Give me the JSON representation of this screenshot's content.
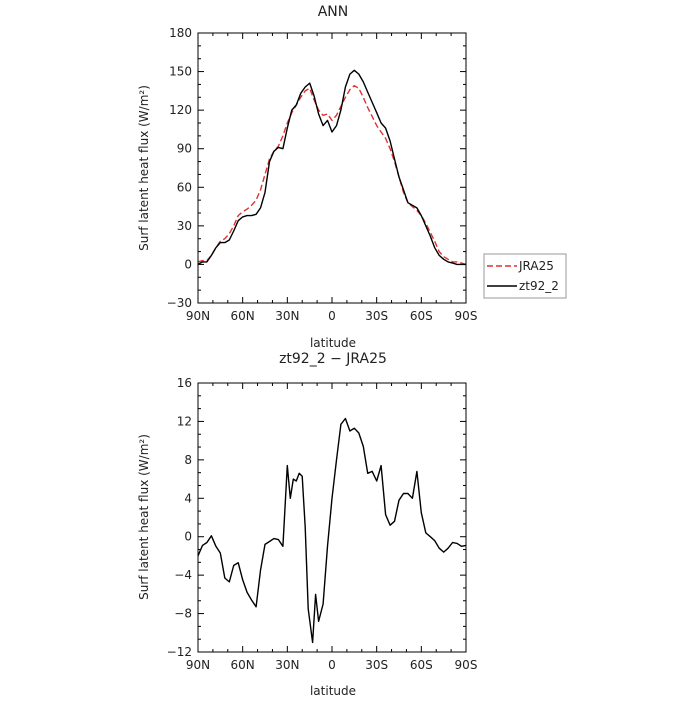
{
  "chart_data": [
    {
      "type": "line",
      "title": "ANN",
      "xlabel": "latitude",
      "ylabel": "Surf latent heat flux (W/m²)",
      "xlim": [
        90,
        -90
      ],
      "ylim": [
        -30,
        180
      ],
      "x_tick_values": [
        90,
        60,
        30,
        0,
        -30,
        -60,
        -90
      ],
      "x_tick_labels": [
        "90N",
        "60N",
        "30N",
        "0",
        "30S",
        "60S",
        "90S"
      ],
      "y_tick_values": [
        -30,
        0,
        30,
        60,
        90,
        120,
        150,
        180
      ],
      "y_tick_labels": [
        "−30",
        "0",
        "30",
        "60",
        "90",
        "120",
        "150",
        "180"
      ],
      "legend": {
        "placement": "right"
      },
      "series": [
        {
          "name": "JRA25",
          "color": "#e03030",
          "dash": "dashed",
          "points": [
            [
              90,
              2
            ],
            [
              87,
              3
            ],
            [
              84,
              3
            ],
            [
              81,
              7
            ],
            [
              78,
              13
            ],
            [
              75,
              18
            ],
            [
              72,
              20
            ],
            [
              69,
              24
            ],
            [
              66,
              30
            ],
            [
              63,
              38
            ],
            [
              60,
              41
            ],
            [
              57,
              43
            ],
            [
              54,
              46
            ],
            [
              51,
              50
            ],
            [
              48,
              58
            ],
            [
              45,
              70
            ],
            [
              42,
              82
            ],
            [
              39,
              88
            ],
            [
              36,
              92
            ],
            [
              33,
              100
            ],
            [
              30,
              110
            ],
            [
              27,
              118
            ],
            [
              24,
              124
            ],
            [
              21,
              130
            ],
            [
              18,
              135
            ],
            [
              15,
              137
            ],
            [
              12,
              128
            ],
            [
              9,
              120
            ],
            [
              6,
              116
            ],
            [
              3,
              117
            ],
            [
              0,
              112
            ],
            [
              -3,
              116
            ],
            [
              -6,
              123
            ],
            [
              -9,
              130
            ],
            [
              -12,
              136
            ],
            [
              -15,
              139
            ],
            [
              -18,
              137
            ],
            [
              -21,
              130
            ],
            [
              -24,
              122
            ],
            [
              -27,
              115
            ],
            [
              -30,
              108
            ],
            [
              -33,
              103
            ],
            [
              -36,
              98
            ],
            [
              -39,
              90
            ],
            [
              -42,
              80
            ],
            [
              -45,
              68
            ],
            [
              -48,
              56
            ],
            [
              -51,
              48
            ],
            [
              -54,
              45
            ],
            [
              -57,
              42
            ],
            [
              -60,
              38
            ],
            [
              -63,
              32
            ],
            [
              -66,
              25
            ],
            [
              -69,
              18
            ],
            [
              -72,
              10
            ],
            [
              -75,
              6
            ],
            [
              -78,
              4
            ],
            [
              -81,
              2
            ],
            [
              -84,
              2
            ],
            [
              -87,
              1
            ],
            [
              -90,
              0
            ]
          ]
        },
        {
          "name": "zt92_2",
          "color": "#000000",
          "dash": "solid",
          "points": [
            [
              90,
              0
            ],
            [
              87,
              2
            ],
            [
              84,
              2
            ],
            [
              81,
              7
            ],
            [
              78,
              13
            ],
            [
              75,
              17
            ],
            [
              72,
              17
            ],
            [
              69,
              19
            ],
            [
              66,
              26
            ],
            [
              63,
              34
            ],
            [
              60,
              37
            ],
            [
              57,
              38
            ],
            [
              54,
              38
            ],
            [
              51,
              39
            ],
            [
              48,
              44
            ],
            [
              45,
              56
            ],
            [
              42,
              80
            ],
            [
              39,
              88
            ],
            [
              36,
              91
            ],
            [
              33,
              90
            ],
            [
              30,
              106
            ],
            [
              27,
              120
            ],
            [
              24,
              124
            ],
            [
              21,
              133
            ],
            [
              18,
              138
            ],
            [
              15,
              141
            ],
            [
              12,
              131
            ],
            [
              9,
              117
            ],
            [
              6,
              108
            ],
            [
              3,
              112
            ],
            [
              0,
              103
            ],
            [
              -3,
              108
            ],
            [
              -6,
              120
            ],
            [
              -9,
              138
            ],
            [
              -12,
              148
            ],
            [
              -15,
              151
            ],
            [
              -18,
              148
            ],
            [
              -21,
              142
            ],
            [
              -24,
              134
            ],
            [
              -27,
              126
            ],
            [
              -30,
              118
            ],
            [
              -33,
              110
            ],
            [
              -36,
              106
            ],
            [
              -39,
              96
            ],
            [
              -42,
              82
            ],
            [
              -45,
              68
            ],
            [
              -48,
              58
            ],
            [
              -51,
              48
            ],
            [
              -54,
              46
            ],
            [
              -57,
              44
            ],
            [
              -60,
              38
            ],
            [
              -63,
              30
            ],
            [
              -66,
              22
            ],
            [
              -69,
              13
            ],
            [
              -72,
              7
            ],
            [
              -75,
              4
            ],
            [
              -78,
              2
            ],
            [
              -81,
              1
            ],
            [
              -84,
              0
            ],
            [
              -87,
              0
            ],
            [
              -90,
              0
            ]
          ]
        }
      ]
    },
    {
      "type": "line",
      "title": "zt92_2 − JRA25",
      "xlabel": "latitude",
      "ylabel": "Surf latent heat flux (W/m²)",
      "xlim": [
        90,
        -90
      ],
      "ylim": [
        -12,
        16
      ],
      "x_tick_values": [
        90,
        60,
        30,
        0,
        -30,
        -60,
        -90
      ],
      "x_tick_labels": [
        "90N",
        "60N",
        "30N",
        "0",
        "30S",
        "60S",
        "90S"
      ],
      "y_tick_values": [
        -12,
        -8,
        -4,
        0,
        4,
        8,
        12,
        16
      ],
      "y_tick_labels": [
        "−12",
        "−8",
        "−4",
        "0",
        "4",
        "8",
        "12",
        "16"
      ],
      "series": [
        {
          "color": "#000000",
          "dash": "solid",
          "points": [
            [
              90,
              -2
            ],
            [
              87,
              -0.9
            ],
            [
              84,
              -0.6
            ],
            [
              81,
              0.1
            ],
            [
              78,
              -1.0
            ],
            [
              75,
              -1.7
            ],
            [
              72,
              -4.3
            ],
            [
              69,
              -4.7
            ],
            [
              66,
              -3.0
            ],
            [
              63,
              -2.7
            ],
            [
              60,
              -4.5
            ],
            [
              57,
              -5.8
            ],
            [
              54,
              -6.6
            ],
            [
              51,
              -7.3
            ],
            [
              48,
              -3.5
            ],
            [
              45,
              -0.8
            ],
            [
              42,
              -0.5
            ],
            [
              39,
              -0.2
            ],
            [
              36,
              -0.3
            ],
            [
              33,
              -1.0
            ],
            [
              30,
              7.4
            ],
            [
              28,
              4.0
            ],
            [
              26,
              6.0
            ],
            [
              24,
              5.8
            ],
            [
              22,
              6.6
            ],
            [
              20,
              6.3
            ],
            [
              18,
              1.0
            ],
            [
              16,
              -7.5
            ],
            [
              13,
              -11.0
            ],
            [
              11,
              -6.0
            ],
            [
              9,
              -8.8
            ],
            [
              6,
              -7.0
            ],
            [
              3,
              -1.0
            ],
            [
              0,
              4.0
            ],
            [
              -3,
              8.0
            ],
            [
              -6,
              11.7
            ],
            [
              -9,
              12.3
            ],
            [
              -12,
              11.0
            ],
            [
              -15,
              11.3
            ],
            [
              -18,
              10.8
            ],
            [
              -21,
              9.4
            ],
            [
              -24,
              6.6
            ],
            [
              -27,
              6.8
            ],
            [
              -30,
              5.8
            ],
            [
              -33,
              7.4
            ],
            [
              -36,
              2.3
            ],
            [
              -39,
              1.2
            ],
            [
              -42,
              1.6
            ],
            [
              -45,
              3.8
            ],
            [
              -48,
              4.5
            ],
            [
              -51,
              4.5
            ],
            [
              -54,
              4.0
            ],
            [
              -57,
              6.8
            ],
            [
              -60,
              2.5
            ],
            [
              -63,
              0.4
            ],
            [
              -66,
              0
            ],
            [
              -69,
              -0.4
            ],
            [
              -72,
              -1.2
            ],
            [
              -75,
              -1.6
            ],
            [
              -78,
              -1.2
            ],
            [
              -81,
              -0.6
            ],
            [
              -84,
              -0.7
            ],
            [
              -87,
              -1.0
            ],
            [
              -90,
              -0.9
            ]
          ]
        }
      ]
    }
  ]
}
